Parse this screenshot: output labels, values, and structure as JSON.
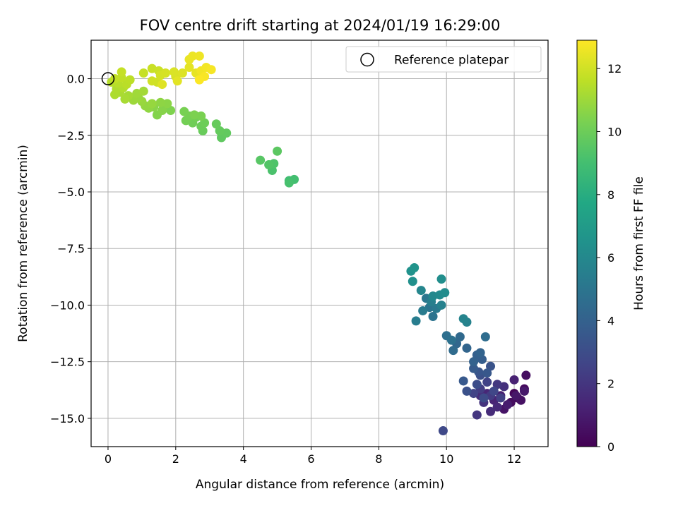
{
  "chart_data": {
    "type": "scatter",
    "title": "FOV centre drift starting at 2024/01/19 16:29:00",
    "xlabel": "Angular distance from reference (arcmin)",
    "ylabel": "Rotation from reference (arcmin)",
    "xlim": [
      -0.5,
      13.0
    ],
    "ylim": [
      -16.25,
      1.7
    ],
    "xticks": [
      0,
      2,
      4,
      6,
      8,
      10,
      12
    ],
    "xtick_labels": [
      "0",
      "2",
      "4",
      "6",
      "8",
      "10",
      "12"
    ],
    "yticks": [
      0.0,
      -2.5,
      -5.0,
      -7.5,
      -10.0,
      -12.5,
      -15.0
    ],
    "ytick_labels": [
      "0.0",
      "−2.5",
      "−5.0",
      "−7.5",
      "−10.0",
      "−12.5",
      "−15.0"
    ],
    "grid": true,
    "legend": {
      "position": "top-right",
      "entries": [
        "Reference platepar"
      ]
    },
    "reference_point": {
      "x": 0.0,
      "y": 0.0
    },
    "colorbar": {
      "label": "Hours from first FF file",
      "range": [
        0,
        12.9
      ],
      "ticks": [
        0,
        2,
        4,
        6,
        8,
        10,
        12
      ],
      "tick_labels": [
        "0",
        "2",
        "4",
        "6",
        "8",
        "10",
        "12"
      ],
      "colormap": "viridis"
    },
    "points": [
      [
        12.0,
        -13.9,
        0.1
      ],
      [
        12.1,
        -14.1,
        0.2
      ],
      [
        12.3,
        -13.7,
        0.3
      ],
      [
        11.9,
        -14.3,
        0.4
      ],
      [
        12.35,
        -13.1,
        0.5
      ],
      [
        12.2,
        -14.2,
        0.6
      ],
      [
        11.7,
        -14.6,
        0.7
      ],
      [
        12.05,
        -14.0,
        0.8
      ],
      [
        12.3,
        -13.8,
        0.9
      ],
      [
        11.8,
        -14.4,
        1.0
      ],
      [
        11.6,
        -14.0,
        1.1
      ],
      [
        12.0,
        -13.3,
        1.2
      ],
      [
        11.4,
        -14.2,
        1.3
      ],
      [
        11.2,
        -13.9,
        1.4
      ],
      [
        11.5,
        -14.5,
        1.5
      ],
      [
        11.3,
        -14.7,
        1.6
      ],
      [
        11.0,
        -14.0,
        1.7
      ],
      [
        11.7,
        -13.6,
        1.8
      ],
      [
        11.1,
        -14.3,
        1.9
      ],
      [
        10.9,
        -14.85,
        2.0
      ],
      [
        11.5,
        -13.5,
        2.1
      ],
      [
        11.3,
        -14.0,
        2.2
      ],
      [
        11.0,
        -13.7,
        2.3
      ],
      [
        11.6,
        -14.1,
        2.4
      ],
      [
        11.2,
        -13.4,
        2.5
      ],
      [
        10.8,
        -13.9,
        2.6
      ],
      [
        11.4,
        -13.8,
        2.7
      ],
      [
        9.9,
        -15.55,
        2.8
      ],
      [
        11.1,
        -14.1,
        2.9
      ],
      [
        10.9,
        -13.5,
        3.0
      ],
      [
        11.0,
        -13.1,
        3.1
      ],
      [
        10.6,
        -13.8,
        3.2
      ],
      [
        11.3,
        -12.7,
        3.3
      ],
      [
        10.95,
        -12.95,
        3.4
      ],
      [
        11.2,
        -13.0,
        3.5
      ],
      [
        10.5,
        -13.35,
        3.6
      ],
      [
        10.8,
        -12.8,
        3.7
      ],
      [
        11.05,
        -12.4,
        3.8
      ],
      [
        10.9,
        -12.2,
        3.9
      ],
      [
        10.8,
        -12.5,
        4.0
      ],
      [
        11.0,
        -12.1,
        4.1
      ],
      [
        10.6,
        -11.9,
        4.2
      ],
      [
        10.3,
        -11.7,
        4.3
      ],
      [
        10.4,
        -11.4,
        4.4
      ],
      [
        10.2,
        -12.0,
        4.5
      ],
      [
        11.15,
        -11.4,
        4.6
      ],
      [
        10.0,
        -11.35,
        4.7
      ],
      [
        10.15,
        -11.55,
        4.8
      ],
      [
        9.6,
        -10.5,
        4.9
      ],
      [
        9.5,
        -10.1,
        5.0
      ],
      [
        9.4,
        -9.7,
        5.1
      ],
      [
        9.7,
        -10.15,
        5.2
      ],
      [
        9.3,
        -10.25,
        5.3
      ],
      [
        9.1,
        -10.7,
        5.4
      ],
      [
        9.55,
        -9.85,
        5.5
      ],
      [
        9.85,
        -10.0,
        5.6
      ],
      [
        10.6,
        -10.75,
        5.7
      ],
      [
        10.5,
        -10.6,
        5.8
      ],
      [
        9.25,
        -9.35,
        5.9
      ],
      [
        9.6,
        -9.6,
        6.0
      ],
      [
        9.8,
        -9.55,
        6.1
      ],
      [
        9.95,
        -9.45,
        6.2
      ],
      [
        9.85,
        -8.85,
        6.3
      ],
      [
        9.0,
        -8.95,
        6.4
      ],
      [
        8.95,
        -8.5,
        6.5
      ],
      [
        9.05,
        -8.35,
        6.6
      ],
      [
        5.35,
        -4.5,
        8.9
      ],
      [
        5.5,
        -4.45,
        9.0
      ],
      [
        5.35,
        -4.6,
        9.1
      ],
      [
        4.85,
        -4.05,
        9.2
      ],
      [
        4.9,
        -3.75,
        9.3
      ],
      [
        4.75,
        -3.8,
        9.4
      ],
      [
        4.5,
        -3.6,
        9.5
      ],
      [
        5.0,
        -3.2,
        9.6
      ],
      [
        3.35,
        -2.6,
        9.7
      ],
      [
        3.5,
        -2.4,
        9.75
      ],
      [
        3.3,
        -2.3,
        9.8
      ],
      [
        3.2,
        -2.0,
        9.85
      ],
      [
        2.8,
        -2.3,
        9.9
      ],
      [
        2.75,
        -2.1,
        9.95
      ],
      [
        2.85,
        -1.95,
        10.0
      ],
      [
        2.5,
        -1.95,
        10.05
      ],
      [
        2.6,
        -1.7,
        10.1
      ],
      [
        2.3,
        -1.85,
        10.15
      ],
      [
        2.4,
        -1.65,
        10.2
      ],
      [
        2.25,
        -1.45,
        10.25
      ],
      [
        2.75,
        -1.65,
        10.3
      ],
      [
        2.55,
        -1.6,
        10.35
      ],
      [
        1.85,
        -1.4,
        10.4
      ],
      [
        1.65,
        -1.2,
        10.45
      ],
      [
        1.45,
        -1.6,
        10.5
      ],
      [
        1.6,
        -1.4,
        10.55
      ],
      [
        1.35,
        -1.25,
        10.6
      ],
      [
        1.75,
        -1.1,
        10.65
      ],
      [
        1.55,
        -1.05,
        10.7
      ],
      [
        1.2,
        -1.3,
        10.75
      ],
      [
        1.1,
        -1.2,
        10.8
      ],
      [
        1.3,
        -1.1,
        10.85
      ],
      [
        1.0,
        -1.0,
        10.9
      ],
      [
        0.9,
        -0.85,
        10.95
      ],
      [
        0.75,
        -0.95,
        11.0
      ],
      [
        0.85,
        -0.65,
        11.05
      ],
      [
        1.05,
        -0.55,
        11.1
      ],
      [
        0.6,
        -0.75,
        11.15
      ],
      [
        0.5,
        -0.9,
        11.2
      ],
      [
        0.35,
        -0.6,
        11.25
      ],
      [
        0.2,
        -0.7,
        11.3
      ],
      [
        0.25,
        -0.45,
        11.35
      ],
      [
        0.45,
        -0.4,
        11.4
      ],
      [
        0.1,
        -0.15,
        11.45
      ],
      [
        0.3,
        -0.2,
        11.5
      ],
      [
        0.55,
        -0.25,
        11.55
      ],
      [
        0.65,
        -0.05,
        11.6
      ],
      [
        0.4,
        0.05,
        11.65
      ],
      [
        0.2,
        0.0,
        11.7
      ],
      [
        0.4,
        0.3,
        11.75
      ],
      [
        1.05,
        0.25,
        11.8
      ],
      [
        1.3,
        0.45,
        11.85
      ],
      [
        1.5,
        0.35,
        11.9
      ],
      [
        1.45,
        -0.15,
        11.95
      ],
      [
        1.3,
        -0.1,
        12.0
      ],
      [
        1.55,
        0.15,
        12.05
      ],
      [
        1.7,
        0.25,
        12.1
      ],
      [
        2.0,
        0.1,
        12.15
      ],
      [
        1.95,
        0.3,
        12.2
      ],
      [
        2.2,
        0.25,
        12.25
      ],
      [
        1.6,
        -0.25,
        12.3
      ],
      [
        2.05,
        -0.1,
        12.35
      ],
      [
        2.4,
        0.5,
        12.4
      ],
      [
        2.6,
        0.25,
        12.45
      ],
      [
        2.4,
        0.85,
        12.5
      ],
      [
        2.5,
        1.0,
        12.55
      ],
      [
        2.7,
        1.0,
        12.6
      ],
      [
        2.75,
        0.35,
        12.65
      ],
      [
        2.9,
        0.5,
        12.7
      ],
      [
        3.05,
        0.4,
        12.75
      ],
      [
        2.85,
        0.1,
        12.8
      ],
      [
        2.7,
        -0.05,
        12.85
      ]
    ]
  }
}
